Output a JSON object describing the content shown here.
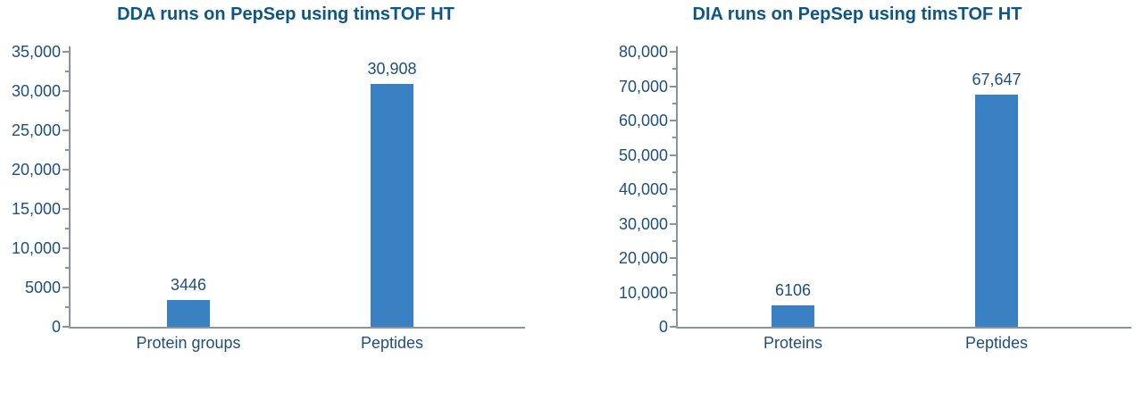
{
  "colors": {
    "bar": "#3a81c4",
    "title": "#0e5686",
    "labels": "#1e4f7e",
    "axis": "#8b949b",
    "background": "#ffffff"
  },
  "chart_data": [
    {
      "type": "bar",
      "title": "DDA runs on PepSep using timsTOF HT",
      "categories": [
        "Protein groups",
        "Peptides"
      ],
      "values": [
        3446,
        30908
      ],
      "value_labels": [
        "3446",
        "30,908"
      ],
      "xlabel": "",
      "ylabel": "",
      "ylim": [
        0,
        35000
      ],
      "ytick_values": [
        0,
        5000,
        10000,
        15000,
        20000,
        25000,
        30000,
        35000
      ],
      "ytick_labels": [
        "0",
        "5000",
        "10,000",
        "15,000",
        "20,000",
        "25,000",
        "30,000",
        "35,000"
      ],
      "minor_tick_step": 2500,
      "grid": "off",
      "legend": "none"
    },
    {
      "type": "bar",
      "title": "DIA runs on PepSep using timsTOF HT",
      "categories": [
        "Proteins",
        "Peptides"
      ],
      "values": [
        6106,
        67647
      ],
      "value_labels": [
        "6106",
        "67,647"
      ],
      "xlabel": "",
      "ylabel": "",
      "ylim": [
        0,
        80000
      ],
      "ytick_values": [
        0,
        10000,
        20000,
        30000,
        40000,
        50000,
        60000,
        70000,
        80000
      ],
      "ytick_labels": [
        "0",
        "10,000",
        "20,000",
        "30,000",
        "40,000",
        "50,000",
        "60,000",
        "70,000",
        "80,000"
      ],
      "minor_tick_step": 5000,
      "grid": "off",
      "legend": "none"
    }
  ]
}
